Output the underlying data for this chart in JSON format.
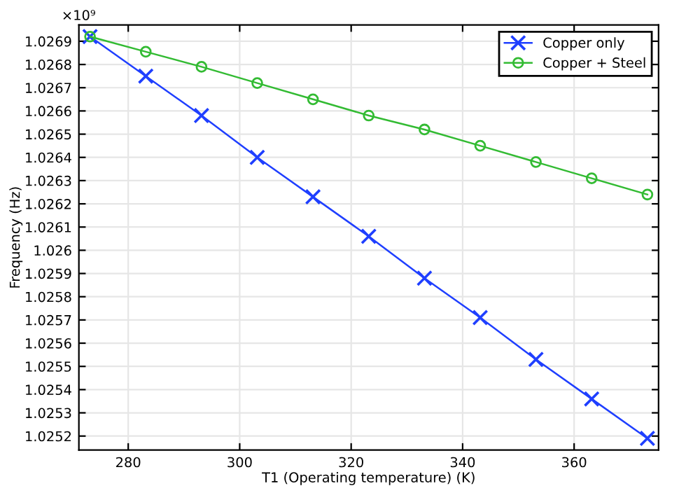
{
  "chart_data": {
    "type": "line",
    "xlabel": "T1 (Operating temperature) (K)",
    "ylabel": "Frequency (Hz)",
    "annotations": [
      "×10⁹"
    ],
    "x": [
      273.15,
      283.15,
      293.15,
      303.15,
      313.15,
      323.15,
      333.15,
      343.15,
      353.15,
      363.15,
      373.15
    ],
    "series": [
      {
        "name": "Copper only",
        "color": "#1f3fff",
        "marker": "cross",
        "values": [
          1.02692,
          1.02675,
          1.02658,
          1.0264,
          1.02623,
          1.02606,
          1.02588,
          1.02571,
          1.02553,
          1.02536,
          1.02519
        ]
      },
      {
        "name": "Copper + Steel",
        "color": "#33bb33",
        "marker": "circle",
        "values": [
          1.02692,
          1.026855,
          1.02679,
          1.02672,
          1.02665,
          1.02658,
          1.02652,
          1.02645,
          1.02638,
          1.02631,
          1.02624
        ]
      }
    ],
    "xlim": [
      271.15,
      375.15
    ],
    "xticks": [
      280,
      300,
      320,
      340,
      360
    ],
    "ylim": [
      1.02514,
      1.02697
    ],
    "yticks": [
      1.0252,
      1.0253,
      1.0254,
      1.0255,
      1.0256,
      1.0257,
      1.0258,
      1.0259,
      1.026,
      1.0261,
      1.0262,
      1.0263,
      1.0264,
      1.0265,
      1.0266,
      1.0267,
      1.0268,
      1.0269
    ],
    "grid": true,
    "legend": "top right",
    "line_style": "solid"
  }
}
